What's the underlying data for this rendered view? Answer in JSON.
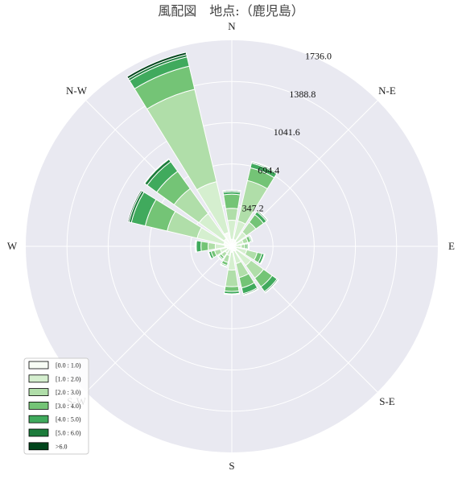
{
  "chart_data": {
    "type": "windrose",
    "title": "風配図　地点:（鹿児島）",
    "directions": [
      "N",
      "N-E",
      "E",
      "S-E",
      "S",
      "S-W",
      "W",
      "N-W"
    ],
    "sector_directions": [
      "N",
      "NNE",
      "NE",
      "ENE",
      "E",
      "ESE",
      "SE",
      "SSE",
      "S",
      "SSW",
      "SW",
      "WSW",
      "W",
      "WNW",
      "NW",
      "NNW"
    ],
    "radial_ticks": [
      347.2,
      694.4,
      1041.6,
      1388.8,
      1736.0
    ],
    "radial_tick_labels": [
      "347.2",
      "694.4",
      "1041.6",
      "1388.8",
      "1736.0"
    ],
    "rmax": 1736.0,
    "grid": true,
    "legend_position": "bottom-left",
    "bins": [
      "[0.0 : 1.0)",
      "[1.0 : 2.0)",
      "[2.0 : 3.0)",
      "[3.0 : 4.0)",
      "[4.0 : 5.0)",
      "[5.0 : 6.0)",
      ">6.0"
    ],
    "colors": [
      "#f7fcf5",
      "#d5efcf",
      "#b0dea9",
      "#74c476",
      "#40aa5d",
      "#1c7c3b",
      "#00441b"
    ],
    "sectors": [
      {
        "direction": "N",
        "cumulative": [
          60,
          220,
          320,
          440,
          460,
          470,
          475
        ]
      },
      {
        "direction": "NNE",
        "cumulative": [
          60,
          220,
          570,
          680,
          720,
          730,
          735
        ]
      },
      {
        "direction": "NE",
        "cumulative": [
          50,
          150,
          250,
          330,
          360,
          370,
          375
        ]
      },
      {
        "direction": "ENE",
        "cumulative": [
          40,
          100,
          140,
          165,
          175,
          180,
          182
        ]
      },
      {
        "direction": "E",
        "cumulative": [
          30,
          80,
          110,
          130,
          140,
          145,
          147
        ]
      },
      {
        "direction": "ESE",
        "cumulative": [
          40,
          130,
          220,
          260,
          280,
          285,
          287
        ]
      },
      {
        "direction": "SE",
        "cumulative": [
          50,
          200,
          330,
          420,
          470,
          480,
          485
        ]
      },
      {
        "direction": "SSE",
        "cumulative": [
          40,
          150,
          270,
          360,
          410,
          420,
          425
        ]
      },
      {
        "direction": "S",
        "cumulative": [
          50,
          200,
          340,
          380,
          400,
          405,
          407
        ]
      },
      {
        "direction": "SSW",
        "cumulative": [
          30,
          80,
          140,
          165,
          175,
          180,
          182
        ]
      },
      {
        "direction": "SW",
        "cumulative": [
          30,
          70,
          110,
          130,
          140,
          145,
          147
        ]
      },
      {
        "direction": "WSW",
        "cumulative": [
          40,
          100,
          150,
          180,
          200,
          205,
          207
        ]
      },
      {
        "direction": "W",
        "cumulative": [
          60,
          140,
          200,
          260,
          300,
          305,
          310
        ]
      },
      {
        "direction": "WNW",
        "cumulative": [
          70,
          300,
          560,
          750,
          870,
          890,
          900
        ]
      },
      {
        "direction": "NW",
        "cumulative": [
          80,
          340,
          600,
          780,
          880,
          905,
          910
        ]
      },
      {
        "direction": "NNW",
        "cumulative": [
          120,
          560,
          1360,
          1560,
          1640,
          1660,
          1680
        ]
      }
    ]
  }
}
